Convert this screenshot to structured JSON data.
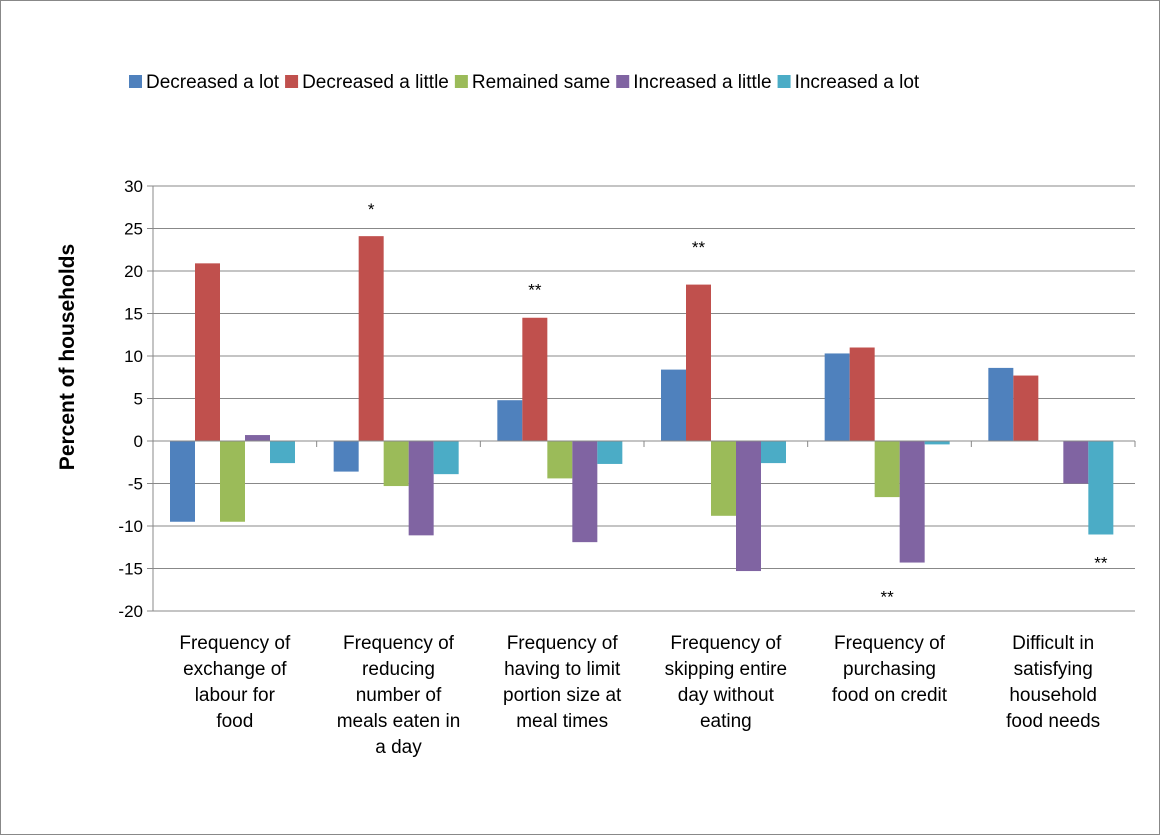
{
  "chart_data": {
    "type": "bar",
    "title": "",
    "xlabel": "",
    "ylabel": "Percent of households",
    "ylim": [
      -20,
      30
    ],
    "yticks": [
      30,
      25,
      20,
      15,
      10,
      5,
      0,
      -5,
      -10,
      -15,
      -20
    ],
    "grid": true,
    "legend_position": "top",
    "categories": [
      [
        "Frequency of",
        "exchange of",
        "labour for",
        "food"
      ],
      [
        "Frequency of",
        "reducing",
        "number of",
        "meals eaten in",
        "a day"
      ],
      [
        "Frequency of",
        "having to limit",
        "portion size at",
        "meal times"
      ],
      [
        "Frequency of",
        "skipping entire",
        "day without",
        "eating"
      ],
      [
        "Frequency of",
        "purchasing",
        "food on credit"
      ],
      [
        "Difficult in",
        "satisfying",
        "household",
        "food needs"
      ]
    ],
    "series": [
      {
        "name": "Decreased a lot",
        "color": "#4F81BD",
        "values": [
          -9.5,
          -3.6,
          4.8,
          8.4,
          10.3,
          8.6
        ]
      },
      {
        "name": "Decreased a little",
        "color": "#C0504D",
        "values": [
          20.9,
          24.1,
          14.5,
          18.4,
          11.0,
          7.7
        ]
      },
      {
        "name": "Remained same",
        "color": "#9BBB59",
        "values": [
          -9.5,
          -5.3,
          -4.4,
          -8.8,
          -6.6,
          0
        ]
      },
      {
        "name": "Increased a little",
        "color": "#8064A2",
        "values": [
          0.7,
          -11.1,
          -11.9,
          -15.3,
          -14.3,
          -5.0
        ]
      },
      {
        "name": "Increased a lot",
        "color": "#4BACC6",
        "values": [
          -2.6,
          -3.9,
          -2.7,
          -2.6,
          -0.4,
          -11.0
        ]
      }
    ],
    "annotations": [
      {
        "text": "*",
        "category_index": 1,
        "y": 27.3
      },
      {
        "text": "**",
        "category_index": 2,
        "y": 17.8
      },
      {
        "text": "**",
        "category_index": 3,
        "y": 22.8
      },
      {
        "text": "**",
        "category_index": 4,
        "y": -18.3
      },
      {
        "text": "**",
        "category_index": 5,
        "y": -14.3
      }
    ]
  }
}
